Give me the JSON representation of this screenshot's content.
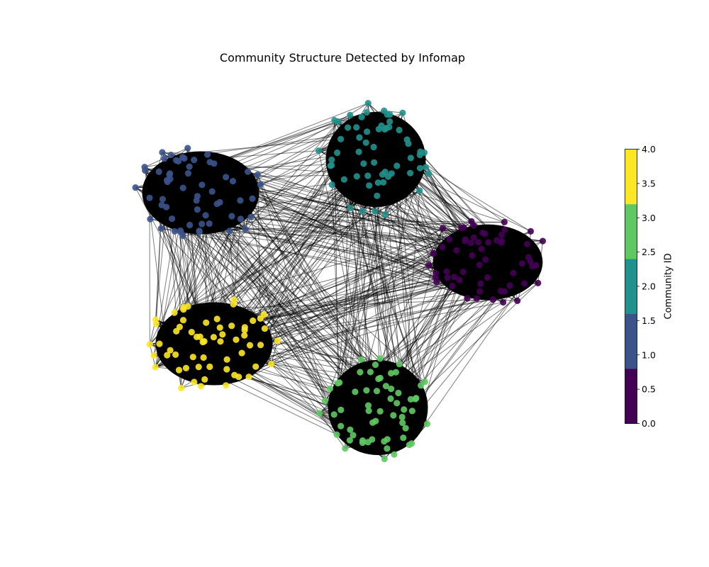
{
  "chart_data": {
    "type": "network",
    "title": "Community Structure Detected by Infomap",
    "communities": [
      {
        "id": 0,
        "color": "#440154",
        "node_count": 60
      },
      {
        "id": 1,
        "color": "#3b528b",
        "node_count": 60
      },
      {
        "id": 2,
        "color": "#21918c",
        "node_count": 60
      },
      {
        "id": 3,
        "color": "#5ec962",
        "node_count": 60
      },
      {
        "id": 4,
        "color": "#fde725",
        "node_count": 60
      }
    ],
    "edge_color": "#000000",
    "colorbar": {
      "label": "Community ID",
      "range": [
        0.0,
        4.0
      ],
      "ticks": [
        "0.0",
        "0.5",
        "1.0",
        "1.5",
        "2.0",
        "2.5",
        "3.0",
        "3.5",
        "4.0"
      ],
      "colors": [
        "#440154",
        "#3b528b",
        "#21918c",
        "#5ec962",
        "#fde725"
      ]
    }
  }
}
